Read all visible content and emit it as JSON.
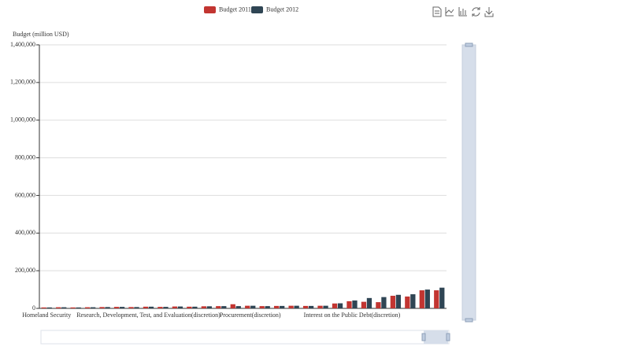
{
  "chart_data": {
    "type": "bar",
    "y_axis_label": "Budget (million USD)",
    "categories": [
      "Homeland Security",
      null,
      null,
      null,
      null,
      null,
      null,
      "Research, Development, Test, and Evaluation(discretion)",
      null,
      null,
      null,
      null,
      null,
      null,
      "Procurement(discretion)",
      null,
      null,
      null,
      null,
      null,
      null,
      "Interest on the Public Debt(discretion)",
      null,
      null,
      null,
      null,
      null,
      null
    ],
    "series": [
      {
        "name": "Budget 2011",
        "color": "#c23531",
        "values": [
          5000,
          6000,
          5000,
          6000,
          7000,
          8000,
          7000,
          9000,
          8000,
          10000,
          9000,
          11000,
          12000,
          22000,
          14000,
          12000,
          13000,
          14000,
          13000,
          14000,
          26000,
          38000,
          35000,
          33000,
          67000,
          63000,
          96000,
          96000
        ]
      },
      {
        "name": "Budget 2012",
        "color": "#2f4554",
        "values": [
          5000,
          6000,
          5000,
          6000,
          7000,
          8000,
          7000,
          9000,
          8000,
          10000,
          9000,
          11000,
          12000,
          12000,
          14000,
          12000,
          13000,
          14000,
          13000,
          14000,
          27000,
          42000,
          55000,
          60000,
          72000,
          75000,
          100000,
          110000
        ]
      }
    ],
    "ylim": [
      0,
      1400000
    ],
    "yticks": [
      0,
      {
        "value": 200000,
        "label": "200,000"
      },
      {
        "value": 400000,
        "label": "400,000"
      },
      {
        "value": 600000,
        "label": "600,000"
      },
      {
        "value": 800000,
        "label": "800,000"
      },
      {
        "value": 1000000,
        "label": "1,000,000"
      },
      {
        "value": 1200000,
        "label": "1,200,000"
      },
      {
        "value": 1400000,
        "label": "1,400,000"
      }
    ],
    "grid": true
  }
}
